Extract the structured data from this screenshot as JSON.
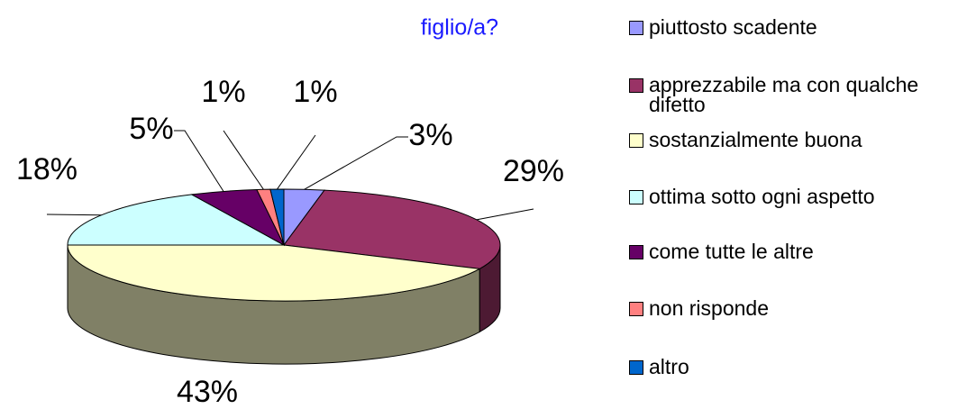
{
  "chart_data": {
    "type": "pie",
    "title": "figlio/a?",
    "categories": [
      "piuttosto scadente",
      "apprezzabile ma con qualche difetto",
      "sostanzialmente buona",
      "ottima sotto ogni aspetto",
      "come tutte le altre",
      "non risponde",
      "altro"
    ],
    "values": [
      3,
      29,
      43,
      18,
      5,
      1,
      1
    ],
    "value_labels": [
      "3%",
      "29%",
      "43%",
      "18%",
      "5%",
      "1%",
      "1%"
    ],
    "colors": [
      "#9999ff",
      "#993366",
      "#ffffcc",
      "#ccffff",
      "#660066",
      "#ff8080",
      "#0066cc"
    ],
    "legend": "right"
  }
}
